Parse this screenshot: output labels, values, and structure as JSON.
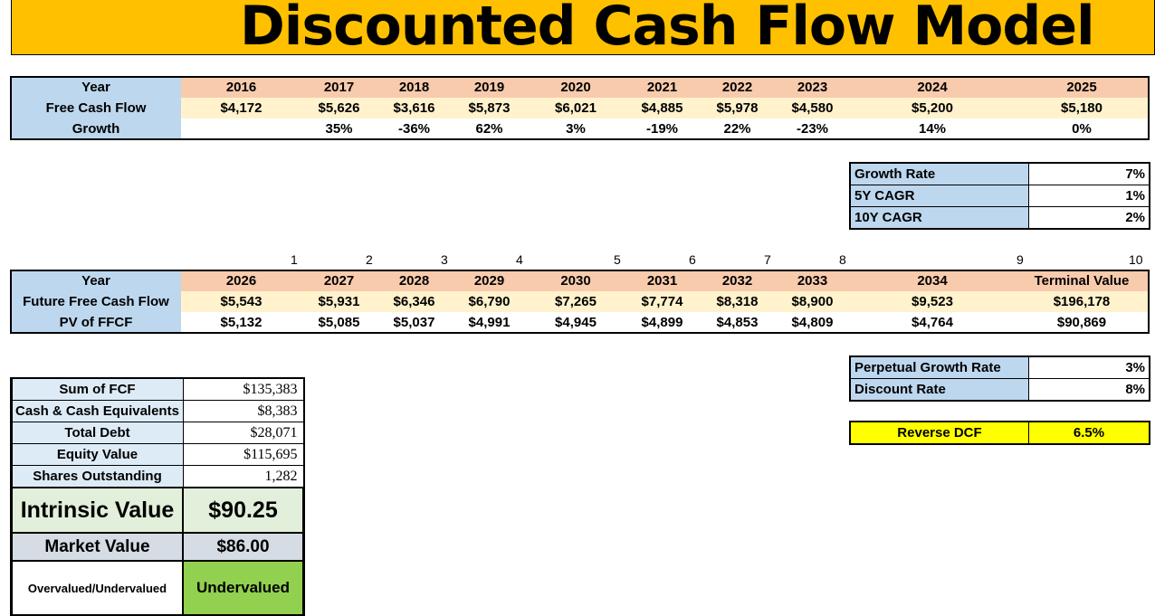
{
  "title": "Discounted Cash Flow Model",
  "historical": {
    "year_label": "Year",
    "years": [
      "2016",
      "2017",
      "2018",
      "2019",
      "2020",
      "2021",
      "2022",
      "2023",
      "2024",
      "2025"
    ],
    "fcf_label": "Free Cash Flow",
    "fcf": [
      "$4,172",
      "$5,626",
      "$3,616",
      "$5,873",
      "$6,021",
      "$4,885",
      "$5,978",
      "$4,580",
      "$5,200",
      "$5,180"
    ],
    "growth_label": "Growth",
    "growth": [
      "",
      "35%",
      "-36%",
      "62%",
      "3%",
      "-19%",
      "22%",
      "-23%",
      "14%",
      "0%"
    ]
  },
  "rates": {
    "rows": [
      {
        "label": "Growth Rate",
        "value": "7%"
      },
      {
        "label": "5Y CAGR",
        "value": "1%"
      },
      {
        "label": "10Y CAGR",
        "value": "2%"
      }
    ]
  },
  "projection": {
    "indices": [
      "1",
      "2",
      "3",
      "4",
      "5",
      "6",
      "7",
      "8",
      "9",
      "10"
    ],
    "year_label": "Year",
    "years": [
      "2026",
      "2027",
      "2028",
      "2029",
      "2030",
      "2031",
      "2032",
      "2033",
      "2034",
      "Terminal Value"
    ],
    "ffcf_label": "Future Free Cash Flow",
    "ffcf": [
      "$5,543",
      "$5,931",
      "$6,346",
      "$6,790",
      "$7,265",
      "$7,774",
      "$8,318",
      "$8,900",
      "$9,523",
      "$196,178"
    ],
    "pv_label": "PV of FFCF",
    "pv": [
      "$5,132",
      "$5,085",
      "$5,037",
      "$4,991",
      "$4,945",
      "$4,899",
      "$4,853",
      "$4,809",
      "$4,764",
      "$90,869"
    ]
  },
  "assumptions": {
    "rows": [
      {
        "label": "Perpetual Growth Rate",
        "value": "3%"
      },
      {
        "label": "Discount Rate",
        "value": "8%"
      }
    ]
  },
  "reverse_dcf": {
    "label": "Reverse DCF",
    "value": "6.5%"
  },
  "summary": {
    "rows": [
      {
        "label": "Sum of FCF",
        "value": "$135,383"
      },
      {
        "label": "Cash & Cash Equivalents",
        "value": "$8,383"
      },
      {
        "label": "Total Debt",
        "value": "$28,071"
      },
      {
        "label": "Equity Value",
        "value": "$115,695"
      },
      {
        "label": "Shares Outstanding",
        "value": "1,282"
      }
    ],
    "intrinsic_label": "Intrinsic Value",
    "intrinsic_value": "$90.25",
    "market_label": "Market Value",
    "market_value": "$86.00",
    "verdict_label": "Overvalued/Undervalued",
    "verdict_value": "Undervalued"
  },
  "colors": {
    "title_bg": "#FFC000",
    "label_blue": "#BDD7EE",
    "header_peach": "#F8CBAD",
    "row_cream": "#FFF2CC",
    "reverse_yellow": "#FFFF00",
    "verdict_green": "#92D050",
    "intrinsic_green": "#E2EFDA",
    "market_gray": "#D6DCE4"
  }
}
